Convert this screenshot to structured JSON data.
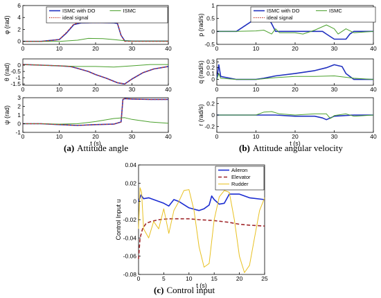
{
  "captions": {
    "a": {
      "tag": "(a)",
      "text": "Attitude angle"
    },
    "b": {
      "tag": "(b)",
      "text": "Attitude angular velocity"
    },
    "c": {
      "tag": "(c)",
      "text": "Control input"
    }
  },
  "colors": {
    "ismc_do": "#1f2fbf",
    "ismc": "#4aa02c",
    "ideal": "#c0392b",
    "aileron": "#1a2bd1",
    "elevator": "#a0262a",
    "rudder": "#e8c020"
  },
  "chart_data": [
    {
      "id": "a",
      "type": "line",
      "panels": [
        {
          "ylabel": "φ (rad)",
          "xlim": [
            0,
            40
          ],
          "ylim": [
            -0.5,
            6
          ],
          "xticks": [
            "0",
            "10",
            "20",
            "30",
            "40"
          ],
          "yticks": [
            "0",
            "2",
            "4",
            "6"
          ],
          "ytick_values": [
            0,
            2,
            4,
            6
          ],
          "legend": [
            "ISMC with DO",
            "ISMC",
            "ideal signal"
          ],
          "series": [
            {
              "name": "ISMC with DO",
              "x": [
                0,
                5,
                10,
                12,
                14,
                16,
                20,
                25,
                26,
                27,
                28,
                30,
                35,
                40
              ],
              "y": [
                0,
                0,
                0.3,
                1.4,
                2.8,
                3.1,
                3.15,
                3.1,
                3.0,
                1.0,
                0.1,
                0.05,
                0.05,
                0.05
              ]
            },
            {
              "name": "ISMC",
              "x": [
                0,
                5,
                10,
                15,
                18,
                22,
                25,
                28,
                30,
                35,
                40
              ],
              "y": [
                0,
                0,
                0,
                0.2,
                0.5,
                0.45,
                0.3,
                0.1,
                0.05,
                0.05,
                0.05
              ]
            },
            {
              "name": "ideal signal",
              "x": [
                0,
                5,
                10,
                12,
                14,
                16,
                20,
                25,
                26,
                27,
                28,
                30,
                35,
                40
              ],
              "y": [
                0,
                0,
                0.3,
                1.5,
                2.9,
                3.14,
                3.14,
                3.14,
                3.1,
                1.0,
                0,
                0,
                0,
                0
              ]
            }
          ]
        },
        {
          "ylabel": "θ (rad)",
          "xlim": [
            0,
            40
          ],
          "ylim": [
            -1.6,
            0.5
          ],
          "xticks": [
            "0",
            "10",
            "20",
            "30",
            "40"
          ],
          "yticks": [
            "0",
            "-0.5",
            "-1",
            "-1.5"
          ],
          "ytick_values": [
            0,
            -0.5,
            -1,
            -1.5
          ],
          "series": [
            {
              "name": "ISMC with DO",
              "x": [
                0,
                5,
                10,
                13,
                15,
                18,
                20,
                23,
                26,
                28,
                30,
                33,
                36,
                40
              ],
              "y": [
                0.05,
                0.0,
                -0.05,
                -0.1,
                -0.25,
                -0.5,
                -0.75,
                -1.05,
                -1.4,
                -1.5,
                -1.1,
                -0.6,
                -0.3,
                -0.1
              ]
            },
            {
              "name": "ISMC",
              "x": [
                0,
                5,
                10,
                15,
                20,
                25,
                30,
                35,
                40
              ],
              "y": [
                0.05,
                0.0,
                -0.05,
                -0.1,
                -0.1,
                -0.15,
                -0.05,
                0.05,
                0.05
              ]
            },
            {
              "name": "ideal signal",
              "x": [
                0,
                5,
                10,
                13,
                15,
                18,
                20,
                23,
                26,
                28,
                30,
                33,
                36,
                40
              ],
              "y": [
                0.05,
                0.0,
                -0.05,
                -0.1,
                -0.25,
                -0.5,
                -0.75,
                -1.05,
                -1.4,
                -1.5,
                -1.1,
                -0.6,
                -0.3,
                -0.1
              ]
            }
          ]
        },
        {
          "ylabel": "ψ (rad)",
          "xlabel": "t (s)",
          "xlim": [
            0,
            40
          ],
          "ylim": [
            -1,
            3
          ],
          "xticks": [
            "0",
            "10",
            "20",
            "30",
            "40"
          ],
          "yticks": [
            "-1",
            "0",
            "1",
            "2",
            "3"
          ],
          "ytick_values": [
            -1,
            0,
            1,
            2,
            3
          ],
          "series": [
            {
              "name": "ISMC with DO",
              "x": [
                0,
                5,
                10,
                15,
                20,
                25,
                27,
                27.5,
                28,
                30,
                35,
                40
              ],
              "y": [
                0,
                0,
                -0.1,
                -0.2,
                -0.1,
                -0.05,
                0.2,
                2.8,
                2.9,
                2.85,
                2.8,
                2.8
              ]
            },
            {
              "name": "ISMC",
              "x": [
                0,
                5,
                10,
                15,
                20,
                25,
                28,
                30,
                35,
                40
              ],
              "y": [
                0,
                0,
                -0.05,
                0,
                0.25,
                0.6,
                0.7,
                0.5,
                0.2,
                0.05
              ]
            },
            {
              "name": "ideal signal",
              "x": [
                0,
                5,
                10,
                15,
                20,
                25,
                27,
                27.5,
                28,
                30,
                35,
                40
              ],
              "y": [
                0,
                0,
                -0.1,
                -0.2,
                -0.1,
                -0.05,
                0.2,
                2.8,
                2.9,
                2.85,
                2.8,
                2.8
              ]
            }
          ]
        }
      ]
    },
    {
      "id": "b",
      "type": "line",
      "panels": [
        {
          "ylabel": "p (rad/s)",
          "xlim": [
            0,
            40
          ],
          "ylim": [
            -0.5,
            1
          ],
          "xticks": [
            "0",
            "10",
            "20",
            "30",
            "40"
          ],
          "yticks": [
            "-0.5",
            "0",
            "0.5",
            "1"
          ],
          "ytick_values": [
            -0.5,
            0,
            0.5,
            1
          ],
          "legend": [
            "ISMC with DO",
            "ISMC",
            "ideal signal"
          ],
          "series": [
            {
              "name": "ISMC with DO",
              "x": [
                0,
                5,
                8,
                10,
                13,
                14,
                15,
                20,
                25,
                27,
                28,
                30,
                33,
                34,
                35,
                40
              ],
              "y": [
                0,
                0,
                0.3,
                0.5,
                0.55,
                0.3,
                0,
                0,
                0,
                0,
                -0.1,
                -0.3,
                -0.3,
                -0.1,
                0,
                0
              ]
            },
            {
              "name": "ISMC",
              "x": [
                0,
                5,
                10,
                12,
                14,
                15,
                16,
                20,
                22,
                25,
                28,
                30,
                31,
                33,
                35,
                40
              ],
              "y": [
                0,
                0,
                0.02,
                0.05,
                -0.1,
                0.1,
                -0.05,
                -0.05,
                -0.1,
                0.05,
                0.25,
                0.1,
                -0.1,
                0.1,
                -0.05,
                0
              ]
            }
          ]
        },
        {
          "ylabel": "q (rad/s)",
          "xlim": [
            0,
            40
          ],
          "ylim": [
            -0.1,
            0.35
          ],
          "xticks": [
            "0",
            "10",
            "20",
            "30",
            "40"
          ],
          "yticks": [
            "0",
            "0.1",
            "0.2",
            "0.3"
          ],
          "ytick_values": [
            0,
            0.1,
            0.2,
            0.3
          ],
          "series": [
            {
              "name": "ISMC with DO",
              "x": [
                0,
                0.5,
                1,
                5,
                10,
                12,
                15,
                20,
                25,
                28,
                30,
                32,
                33,
                35,
                40
              ],
              "y": [
                0,
                0.25,
                0.05,
                0,
                0,
                0.02,
                0.06,
                0.1,
                0.15,
                0.2,
                0.25,
                0.22,
                0.1,
                0,
                0
              ]
            },
            {
              "name": "ISMC",
              "x": [
                0,
                0.5,
                1,
                5,
                10,
                15,
                20,
                25,
                30,
                35,
                40
              ],
              "y": [
                0,
                0.1,
                0.02,
                0,
                0,
                0.03,
                0.05,
                0.05,
                0.06,
                0.02,
                0
              ]
            }
          ]
        },
        {
          "ylabel": "r (rad/s)",
          "xlabel": "t (s)",
          "xlim": [
            0,
            40
          ],
          "ylim": [
            -0.3,
            0.3
          ],
          "xticks": [
            "0",
            "10",
            "20",
            "30",
            "40"
          ],
          "yticks": [
            "-0.2",
            "0",
            "0.2"
          ],
          "ytick_values": [
            -0.2,
            0,
            0.2
          ],
          "series": [
            {
              "name": "ISMC with DO",
              "x": [
                0,
                5,
                10,
                15,
                20,
                25,
                27,
                28,
                30,
                35,
                40
              ],
              "y": [
                0,
                0,
                0,
                0,
                -0.02,
                -0.02,
                -0.05,
                -0.08,
                -0.02,
                0,
                0
              ]
            },
            {
              "name": "ISMC",
              "x": [
                0,
                5,
                10,
                12,
                14,
                16,
                20,
                25,
                28,
                29,
                30,
                33,
                35,
                40
              ],
              "y": [
                0,
                0,
                0,
                0.05,
                0.06,
                0.02,
                0,
                0.02,
                0.02,
                -0.06,
                -0.01,
                0.02,
                -0.02,
                0
              ]
            }
          ]
        }
      ]
    },
    {
      "id": "c",
      "type": "line",
      "panels": [
        {
          "ylabel": "Control Input u",
          "xlabel": "t (s)",
          "xlim": [
            0,
            25
          ],
          "ylim": [
            -0.08,
            0.04
          ],
          "xticks": [
            "0",
            "5",
            "10",
            "15",
            "20",
            "25"
          ],
          "yticks": [
            "0.04",
            "0.02",
            "0",
            "-0.02",
            "-0.04",
            "-0.06",
            "-0.08"
          ],
          "ytick_values": [
            0.04,
            0.02,
            0,
            -0.02,
            -0.04,
            -0.06,
            -0.08
          ],
          "legend": [
            "Aileron",
            "Elevator",
            "Rudder"
          ],
          "series": [
            {
              "name": "Aileron",
              "x": [
                0,
                0.5,
                1,
                2,
                3,
                5,
                6,
                7,
                8,
                10,
                12,
                13,
                14,
                14.5,
                15,
                16,
                17,
                18,
                20,
                22,
                25
              ],
              "y": [
                0,
                0.007,
                0.003,
                0.004,
                0.002,
                -0.002,
                -0.005,
                0.002,
                0,
                -0.007,
                -0.01,
                -0.008,
                -0.004,
                0.006,
                0.002,
                -0.003,
                -0.002,
                0.008,
                0.008,
                0.004,
                0.002
              ]
            },
            {
              "name": "Elevator",
              "x": [
                0,
                0.3,
                0.8,
                1.5,
                2.5,
                4,
                6,
                8,
                10,
                12,
                15,
                18,
                20,
                22,
                25
              ],
              "y": [
                -0.063,
                -0.04,
                -0.03,
                -0.024,
                -0.022,
                -0.02,
                -0.019,
                -0.019,
                -0.019,
                -0.02,
                -0.021,
                -0.023,
                -0.025,
                -0.026,
                -0.027
              ]
            },
            {
              "name": "Rudder",
              "x": [
                0,
                0.3,
                0.6,
                1,
                2,
                3,
                4,
                5,
                6,
                7,
                8,
                9,
                10,
                11,
                12,
                13,
                14,
                15,
                16,
                17,
                18,
                19,
                20,
                21,
                22,
                23,
                24,
                25
              ],
              "y": [
                -0.03,
                0.015,
                0.01,
                -0.03,
                -0.04,
                -0.022,
                -0.03,
                -0.008,
                -0.035,
                -0.01,
                0.0,
                0.012,
                0.013,
                -0.01,
                -0.05,
                -0.072,
                -0.068,
                -0.02,
                0.005,
                0.012,
                0.01,
                -0.02,
                -0.06,
                -0.078,
                -0.07,
                -0.04,
                -0.01,
                0.004
              ]
            }
          ]
        }
      ]
    }
  ]
}
